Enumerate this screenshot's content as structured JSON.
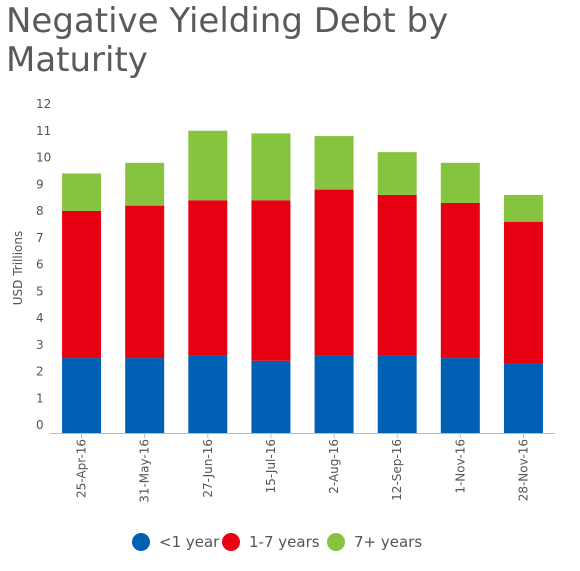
{
  "title": "Negative Yielding Debt by Maturity",
  "chart_data": {
    "type": "bar",
    "stacked": true,
    "title": "Negative Yielding Debt by Maturity",
    "xlabel": "",
    "ylabel": "USD Trillions",
    "ylim": [
      0,
      12
    ],
    "yticks": [
      0,
      1,
      2,
      3,
      4,
      5,
      6,
      7,
      8,
      9,
      10,
      11,
      12
    ],
    "grid": false,
    "legend_position": "bottom",
    "categories": [
      "25-Apr-16",
      "31-May-16",
      "27-Jun-16",
      "15-Jul-16",
      "2-Aug-16",
      "12-Sep-16",
      "1-Nov-16",
      "28-Nov-16"
    ],
    "series": [
      {
        "name": "<1 year",
        "color": "#0061b4",
        "values": [
          2.8,
          2.8,
          2.9,
          2.7,
          2.9,
          2.9,
          2.8,
          2.6
        ]
      },
      {
        "name": "1-7 years",
        "color": "#e60012",
        "values": [
          5.5,
          5.7,
          5.8,
          6.0,
          6.2,
          6.0,
          5.8,
          5.3
        ]
      },
      {
        "name": "7+ years",
        "color": "#86c440",
        "values": [
          1.4,
          1.6,
          2.6,
          2.5,
          2.0,
          1.6,
          1.5,
          1.0
        ]
      }
    ]
  }
}
